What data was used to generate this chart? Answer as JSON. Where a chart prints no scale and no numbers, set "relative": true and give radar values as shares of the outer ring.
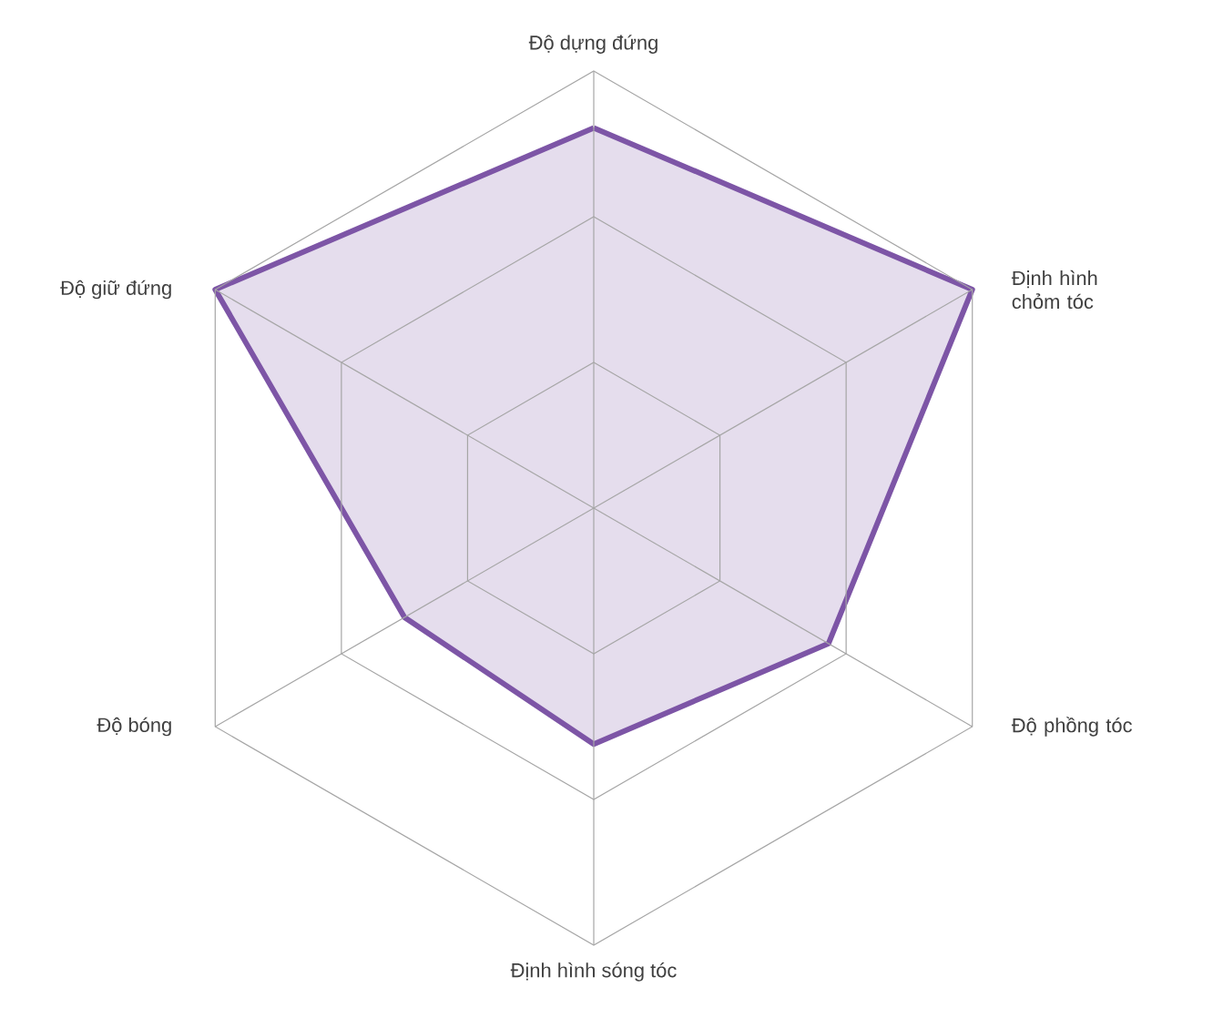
{
  "chart_data": {
    "type": "radar",
    "relative": true,
    "grid": true,
    "categories": [
      "Độ dựng đứng",
      "Định hình chỏm tóc",
      "Độ phồng tóc",
      "Định hình sóng tóc",
      "Độ bóng",
      "Độ giữ đứng"
    ],
    "series": [
      {
        "color": "#7d55a6",
        "values": [
          0.87,
          1.0,
          0.62,
          0.54,
          0.5,
          1.0
        ]
      }
    ]
  }
}
